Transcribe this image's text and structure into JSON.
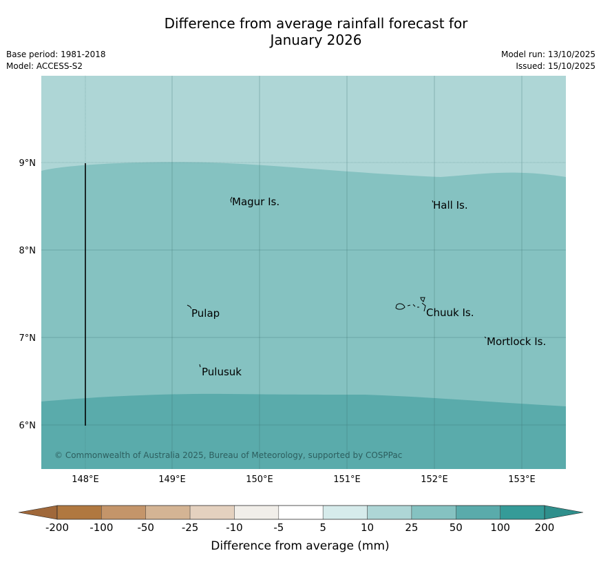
{
  "title": {
    "line1": "Difference from average rainfall forecast for",
    "line2": "January 2026"
  },
  "meta": {
    "base_period": "Base period: 1981-2018",
    "model": "Model: ACCESS-S2",
    "model_run": "Model run: 13/10/2025",
    "issued": "Issued: 15/10/2025"
  },
  "map": {
    "lat_labels": [
      "9°N",
      "8°N",
      "7°N",
      "6°N"
    ],
    "lon_labels": [
      "148°E",
      "149°E",
      "150°E",
      "151°E",
      "152°E",
      "153°E"
    ],
    "places": [
      "Magur Is.",
      "Hall Is.",
      "Pulap",
      "Chuuk Is.",
      "Mortlock Is.",
      "Pulusuk"
    ],
    "copyright": "© Commonwealth of Australia 2025, Bureau of Meteorology, supported by COSPPac",
    "zones": [
      {
        "name": "10 to 25 mm",
        "color": "#aed6d6"
      },
      {
        "name": "25 to 50 mm",
        "color": "#85c2c1"
      },
      {
        "name": "50 to 100 mm",
        "color": "#5aabab"
      }
    ]
  },
  "colorbar": {
    "ticks": [
      "-200",
      "-100",
      "-50",
      "-25",
      "-10",
      "-5",
      "5",
      "10",
      "25",
      "50",
      "100",
      "200"
    ],
    "colors": [
      "#b07840",
      "#c4956a",
      "#d4b494",
      "#e4d1bf",
      "#f1eee9",
      "#ffffff",
      "#d6ebeb",
      "#aed6d6",
      "#85c2c1",
      "#5aabab",
      "#359b98"
    ],
    "under_color": "#a0683a",
    "over_color": "#2f8f8c",
    "label": "Difference from average (mm)"
  }
}
